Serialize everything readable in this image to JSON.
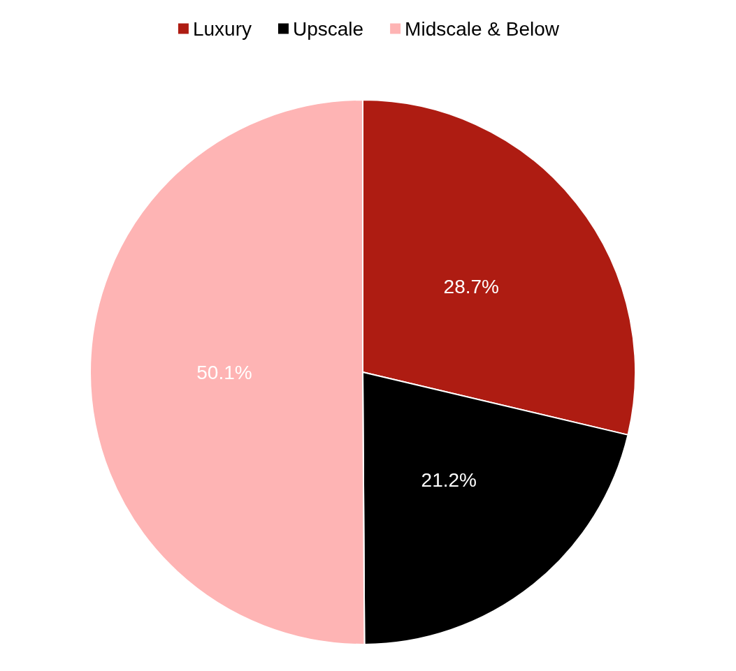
{
  "chart_data": {
    "type": "pie",
    "categories": [
      "Luxury",
      "Upscale",
      "Midscale & Below"
    ],
    "values": [
      28.7,
      21.2,
      50.1
    ],
    "colors": [
      "#ae1c12",
      "#000000",
      "#feb4b4"
    ],
    "value_labels": [
      "28.7%",
      "21.2%",
      "50.1%"
    ],
    "legend": "top"
  }
}
